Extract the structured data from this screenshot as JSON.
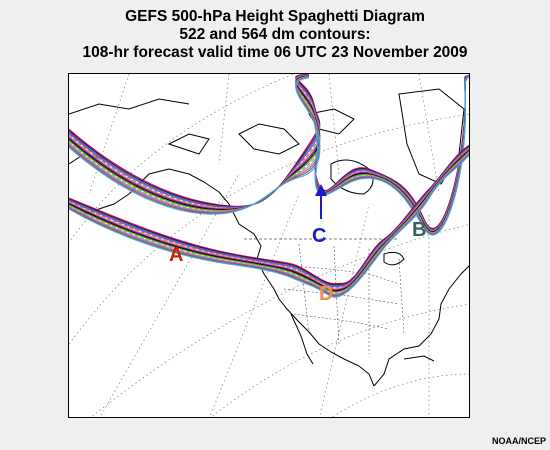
{
  "title": {
    "line1": "GEFS 500-hPa Height Spaghetti Diagram",
    "line2": "522 and 564 dm contours:",
    "line3": "108-hr forecast valid time 06 UTC 23 November 2009"
  },
  "labels": {
    "A": "A",
    "B": "B",
    "C": "C",
    "D": "D"
  },
  "label_colors": {
    "A": "#cc2200",
    "B": "#3a6060",
    "C": "#1a1acc",
    "D": "#f08a50"
  },
  "member_colors": [
    "#ff0000",
    "#0000ff",
    "#00aa00",
    "#ff00ff",
    "#00cccc",
    "#ff8800",
    "#8800ff",
    "#000000",
    "#888800",
    "#00ff66",
    "#ff6699",
    "#6666ff",
    "#aa5500",
    "#33aaff"
  ],
  "credit": "NOAA/NCEP"
}
